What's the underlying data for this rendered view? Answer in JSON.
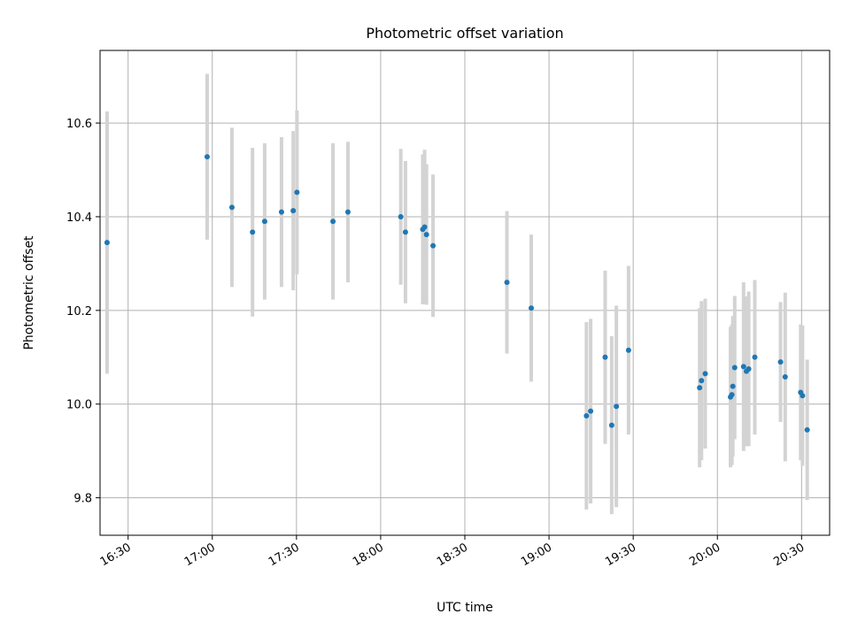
{
  "chart_data": {
    "type": "scatter",
    "title": "Photometric offset variation",
    "xlabel": "UTC time",
    "ylabel": "Photometric offset",
    "x_ticks": [
      "16:30",
      "17:00",
      "17:30",
      "18:00",
      "18:30",
      "19:00",
      "19:30",
      "20:00",
      "20:30"
    ],
    "xlim": [
      "16:20",
      "20:40"
    ],
    "ylim": [
      9.72,
      10.755
    ],
    "y_ticks": [
      9.8,
      10.0,
      10.2,
      10.4,
      10.6
    ],
    "grid": true,
    "legend": "none",
    "colors": {
      "point": "#1f77b4",
      "errorbar": "#d3d3d3",
      "grid": "#b0b0b0"
    },
    "series": [
      {
        "points": [
          {
            "x": "16:22:30",
            "y": 10.345,
            "err": 0.28
          },
          {
            "x": "16:58:10",
            "y": 10.528,
            "err": 0.177
          },
          {
            "x": "17:07:00",
            "y": 10.42,
            "err": 0.17
          },
          {
            "x": "17:14:20",
            "y": 10.367,
            "err": 0.18
          },
          {
            "x": "17:18:40",
            "y": 10.39,
            "err": 0.167
          },
          {
            "x": "17:24:40",
            "y": 10.41,
            "err": 0.16
          },
          {
            "x": "17:28:50",
            "y": 10.413,
            "err": 0.17
          },
          {
            "x": "17:30:10",
            "y": 10.452,
            "err": 0.175
          },
          {
            "x": "17:43:00",
            "y": 10.39,
            "err": 0.167
          },
          {
            "x": "17:48:20",
            "y": 10.41,
            "err": 0.15
          },
          {
            "x": "18:07:10",
            "y": 10.4,
            "err": 0.145
          },
          {
            "x": "18:08:50",
            "y": 10.367,
            "err": 0.152
          },
          {
            "x": "18:15:00",
            "y": 10.373,
            "err": 0.16
          },
          {
            "x": "18:15:40",
            "y": 10.378,
            "err": 0.165
          },
          {
            "x": "18:16:20",
            "y": 10.362,
            "err": 0.15
          },
          {
            "x": "18:18:40",
            "y": 10.338,
            "err": 0.152
          },
          {
            "x": "18:45:00",
            "y": 10.26,
            "err": 0.152
          },
          {
            "x": "18:53:40",
            "y": 10.205,
            "err": 0.157
          },
          {
            "x": "19:13:20",
            "y": 9.975,
            "err": 0.2
          },
          {
            "x": "19:14:50",
            "y": 9.985,
            "err": 0.197
          },
          {
            "x": "19:20:00",
            "y": 10.1,
            "err": 0.185
          },
          {
            "x": "19:22:20",
            "y": 9.955,
            "err": 0.19
          },
          {
            "x": "19:24:00",
            "y": 9.995,
            "err": 0.215
          },
          {
            "x": "19:28:20",
            "y": 10.115,
            "err": 0.18
          },
          {
            "x": "19:53:40",
            "y": 10.035,
            "err": 0.17
          },
          {
            "x": "19:54:20",
            "y": 10.05,
            "err": 0.17
          },
          {
            "x": "19:55:40",
            "y": 10.065,
            "err": 0.16
          },
          {
            "x": "20:04:40",
            "y": 10.015,
            "err": 0.15
          },
          {
            "x": "20:05:10",
            "y": 10.02,
            "err": 0.15
          },
          {
            "x": "20:05:30",
            "y": 10.038,
            "err": 0.15
          },
          {
            "x": "20:06:10",
            "y": 10.078,
            "err": 0.153
          },
          {
            "x": "20:09:20",
            "y": 10.08,
            "err": 0.18
          },
          {
            "x": "20:10:20",
            "y": 10.07,
            "err": 0.16
          },
          {
            "x": "20:11:10",
            "y": 10.075,
            "err": 0.165
          },
          {
            "x": "20:13:20",
            "y": 10.1,
            "err": 0.165
          },
          {
            "x": "20:22:30",
            "y": 10.09,
            "err": 0.128
          },
          {
            "x": "20:24:10",
            "y": 10.058,
            "err": 0.18
          },
          {
            "x": "20:29:40",
            "y": 10.025,
            "err": 0.145
          },
          {
            "x": "20:30:20",
            "y": 10.018,
            "err": 0.15
          },
          {
            "x": "20:32:00",
            "y": 9.945,
            "err": 0.15
          }
        ]
      }
    ]
  }
}
